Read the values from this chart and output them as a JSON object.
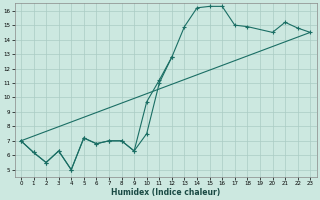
{
  "xlabel": "Humidex (Indice chaleur)",
  "bg_color": "#cce8e0",
  "grid_color": "#aaccc4",
  "line_color": "#1a6e64",
  "xlim": [
    -0.5,
    23.5
  ],
  "ylim": [
    4.5,
    16.5
  ],
  "xticks": [
    0,
    1,
    2,
    3,
    4,
    5,
    6,
    7,
    8,
    9,
    10,
    11,
    12,
    13,
    14,
    15,
    16,
    17,
    18,
    19,
    20,
    21,
    22,
    23
  ],
  "yticks": [
    5,
    6,
    7,
    8,
    9,
    10,
    11,
    12,
    13,
    14,
    15,
    16
  ],
  "series1_x": [
    0,
    1,
    2,
    3,
    4,
    5,
    6,
    7,
    8,
    9,
    10,
    11,
    12,
    13,
    14,
    15,
    16,
    17,
    18,
    20,
    21,
    22,
    23
  ],
  "series1_y": [
    7.0,
    6.2,
    5.5,
    6.3,
    5.0,
    7.2,
    6.8,
    7.0,
    7.0,
    6.3,
    7.5,
    11.0,
    12.8,
    14.9,
    16.2,
    16.3,
    16.3,
    15.0,
    14.9,
    14.5,
    15.2,
    14.8,
    14.5
  ],
  "series2_x": [
    0,
    1,
    2,
    3,
    4,
    5,
    6,
    7,
    8,
    9,
    10,
    11,
    12
  ],
  "series2_y": [
    7.0,
    6.2,
    5.5,
    6.3,
    5.0,
    7.2,
    6.8,
    7.0,
    7.0,
    6.3,
    9.7,
    11.2,
    12.8
  ],
  "series3_x": [
    0,
    23
  ],
  "series3_y": [
    7.0,
    14.5
  ],
  "marker_size": 2.0,
  "line_width": 0.8
}
